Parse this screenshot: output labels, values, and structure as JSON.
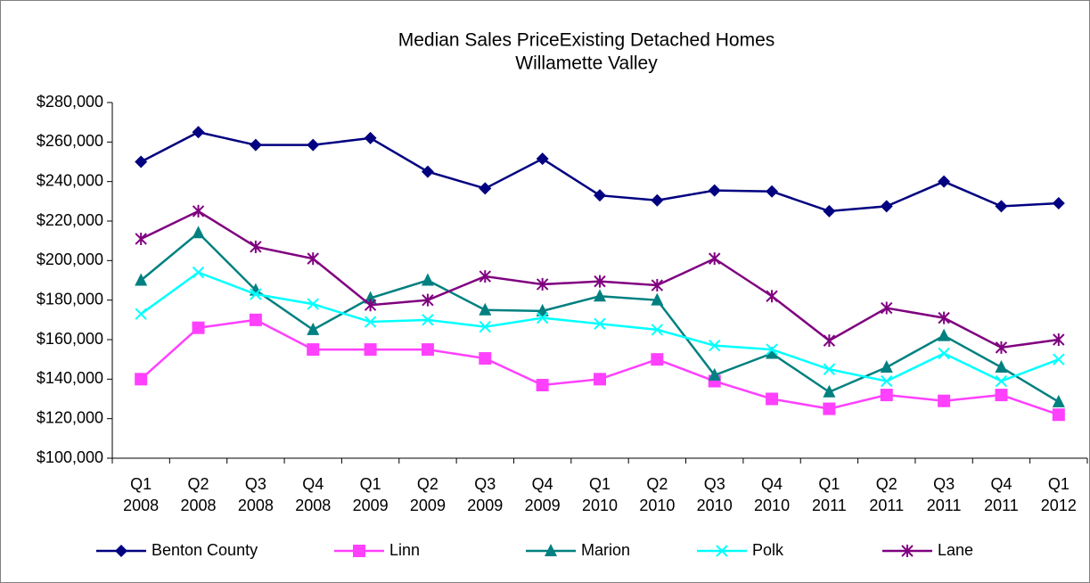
{
  "chart_data": {
    "type": "line",
    "title": "Median Sales PriceExisting Detached Homes",
    "subtitle": "Willamette Valley",
    "categories": [
      [
        "Q1",
        "2008"
      ],
      [
        "Q2",
        "2008"
      ],
      [
        "Q3",
        "2008"
      ],
      [
        "Q4",
        "2008"
      ],
      [
        "Q1",
        "2009"
      ],
      [
        "Q2",
        "2009"
      ],
      [
        "Q3",
        "2009"
      ],
      [
        "Q4",
        "2009"
      ],
      [
        "Q1",
        "2010"
      ],
      [
        "Q2",
        "2010"
      ],
      [
        "Q3",
        "2010"
      ],
      [
        "Q4",
        "2010"
      ],
      [
        "Q1",
        "2011"
      ],
      [
        "Q2",
        "2011"
      ],
      [
        "Q3",
        "2011"
      ],
      [
        "Q4",
        "2011"
      ],
      [
        "Q1",
        "2012"
      ]
    ],
    "series": [
      {
        "name": "Benton County",
        "color": "#000080",
        "marker": "diamond",
        "values": [
          250000,
          265000,
          258500,
          258500,
          262000,
          245000,
          236500,
          251500,
          233000,
          230500,
          235500,
          235000,
          225000,
          227500,
          240000,
          227500,
          229000
        ]
      },
      {
        "name": "Linn",
        "color": "#ff40ff",
        "marker": "square",
        "values": [
          140000,
          166000,
          170000,
          155000,
          155000,
          155000,
          150500,
          137000,
          140000,
          150000,
          139000,
          130000,
          125000,
          132000,
          129000,
          132000,
          122000
        ]
      },
      {
        "name": "Marion",
        "color": "#008080",
        "marker": "triangle",
        "values": [
          190000,
          214000,
          185000,
          165000,
          181000,
          190000,
          175000,
          174500,
          182000,
          180000,
          142000,
          153000,
          133500,
          146000,
          162000,
          146000,
          128500
        ]
      },
      {
        "name": "Polk",
        "color": "#00ffff",
        "marker": "x",
        "values": [
          173000,
          194000,
          183000,
          178000,
          169000,
          170000,
          166500,
          171000,
          168000,
          165000,
          157000,
          155000,
          145000,
          139000,
          153000,
          139000,
          150000
        ]
      },
      {
        "name": "Lane",
        "color": "#800080",
        "marker": "star",
        "values": [
          211000,
          225000,
          207000,
          201000,
          177500,
          180000,
          192000,
          188000,
          189500,
          187500,
          201000,
          182000,
          159500,
          176000,
          171000,
          156000,
          160000
        ]
      }
    ],
    "ylim": [
      100000,
      280000
    ],
    "yticks": [
      {
        "value": 100000,
        "label": "$100,000"
      },
      {
        "value": 120000,
        "label": "$120,000"
      },
      {
        "value": 140000,
        "label": "$140,000"
      },
      {
        "value": 160000,
        "label": "$160,000"
      },
      {
        "value": 180000,
        "label": "$180,000"
      },
      {
        "value": 200000,
        "label": "$200,000"
      },
      {
        "value": 220000,
        "label": "$220,000"
      },
      {
        "value": 240000,
        "label": "$240,000"
      },
      {
        "value": 260000,
        "label": "$260,000"
      },
      {
        "value": 280000,
        "label": "$280,000"
      }
    ],
    "grid": false,
    "legend": "bottom"
  }
}
